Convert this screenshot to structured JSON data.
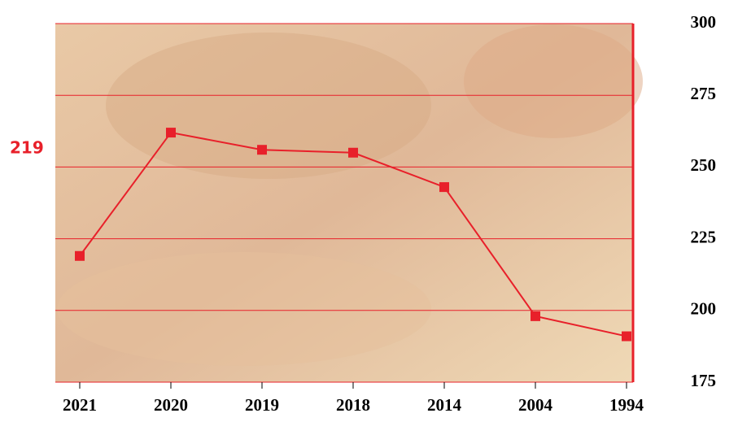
{
  "chart_data": {
    "type": "line",
    "annotation": "219",
    "categories": [
      "2021",
      "2020",
      "2019",
      "2018",
      "2014",
      "2004",
      "1994"
    ],
    "values": [
      219,
      262,
      256,
      255,
      243,
      198,
      191
    ],
    "color": "#e8202a",
    "ylim": [
      175,
      300
    ],
    "yticks": [
      175,
      200,
      225,
      250,
      275,
      300
    ],
    "grid": true
  }
}
